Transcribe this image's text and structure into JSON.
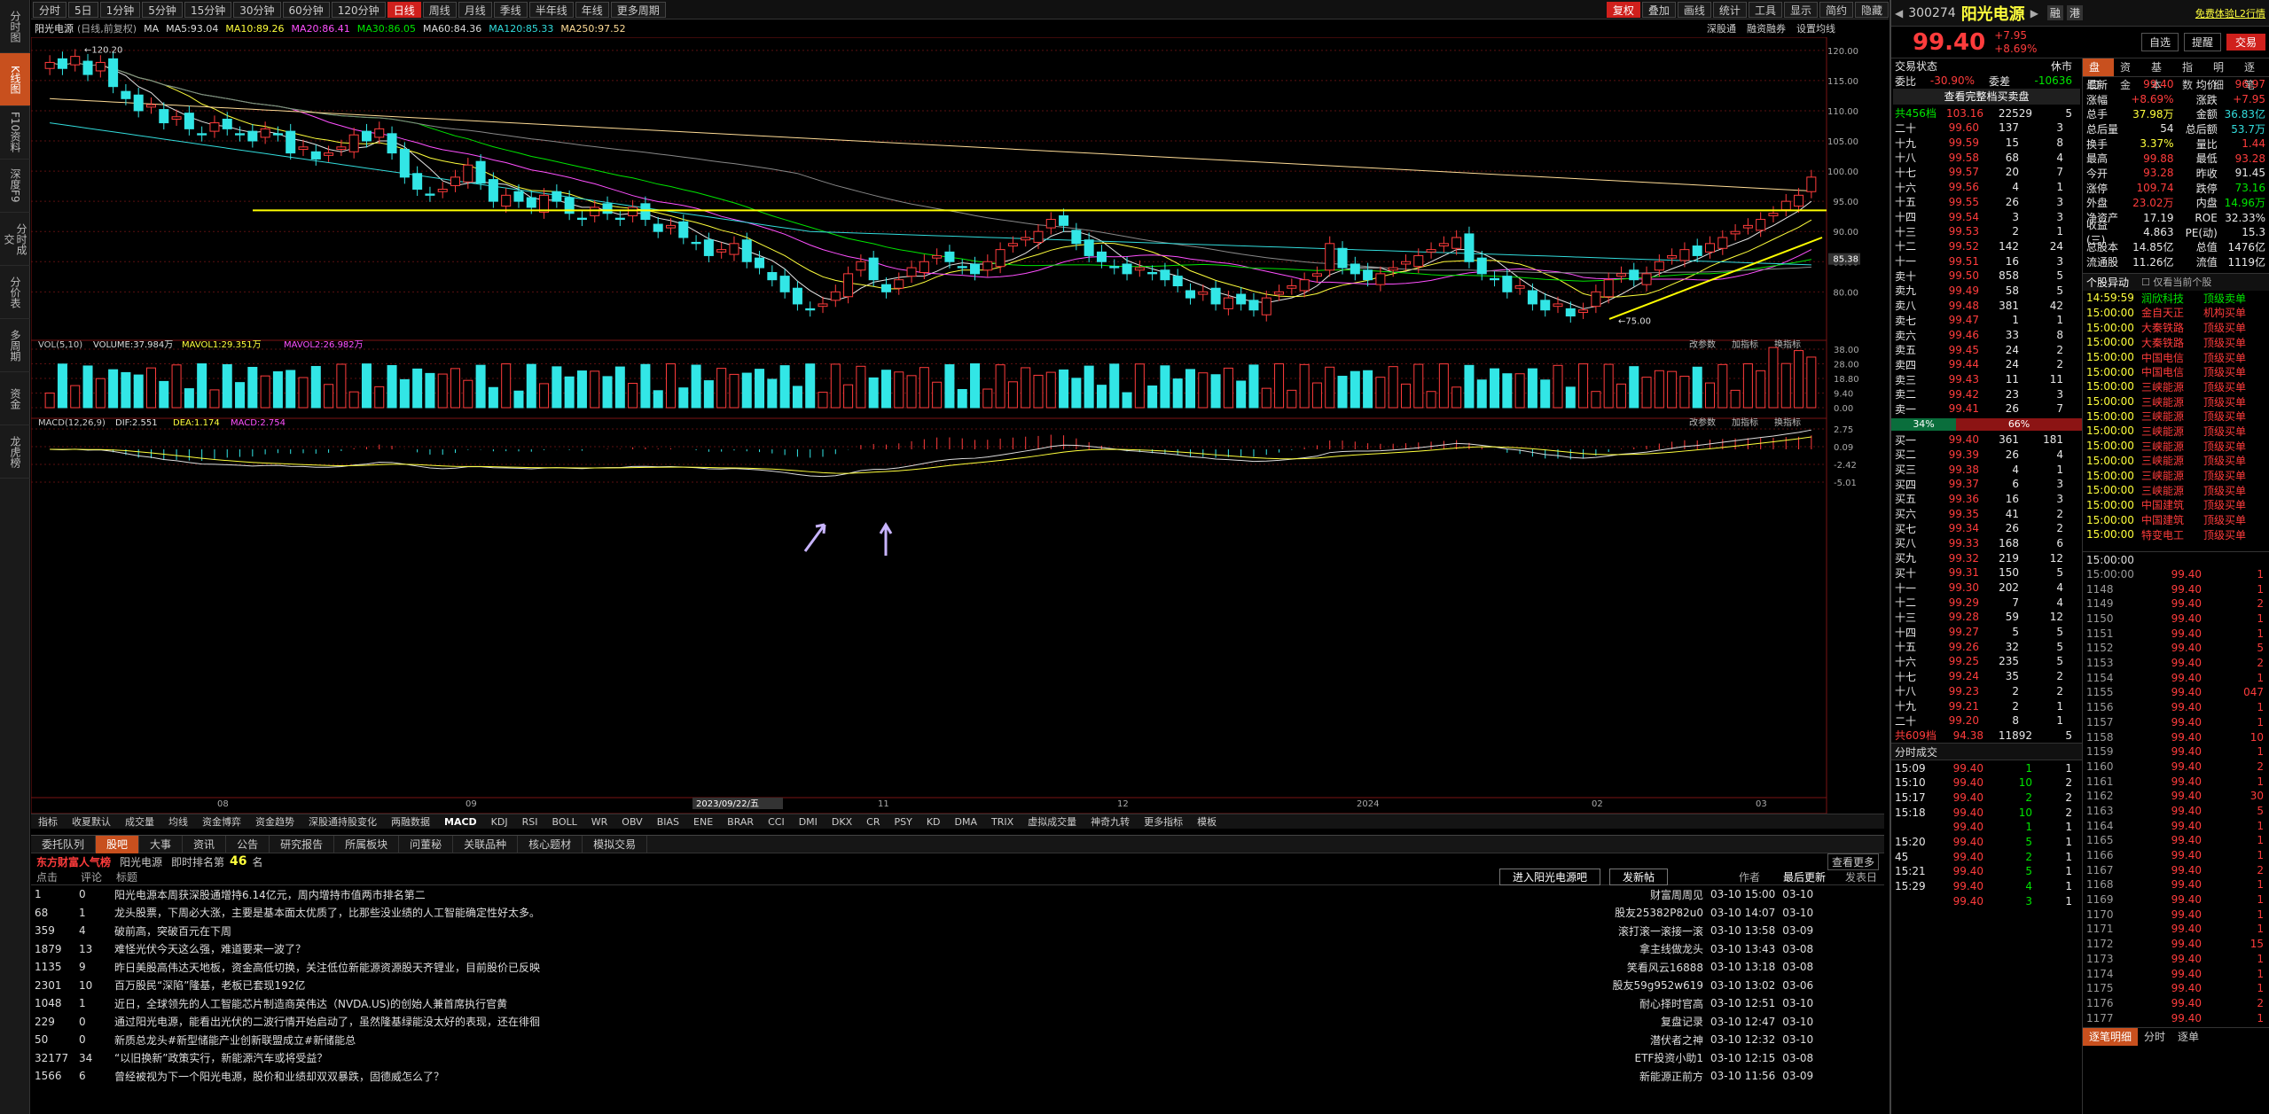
{
  "sidebar": [
    "分时图",
    "K线图",
    "F10资料",
    "深度F9",
    "分时成交",
    "分价表",
    "多周期",
    "资金",
    "龙虎榜"
  ],
  "toolbar": {
    "periods": [
      "分时",
      "5日",
      "1分钟",
      "5分钟",
      "15分钟",
      "30分钟",
      "60分钟",
      "120分钟",
      "日线",
      "周线",
      "月线",
      "季线",
      "半年线",
      "年线",
      "更多周期"
    ],
    "active": "日线",
    "right": [
      "复权",
      "叠加",
      "画线",
      "统计",
      "工具",
      "显示",
      "简约",
      "隐藏"
    ]
  },
  "info": {
    "stock": "阳光电源",
    "mode": "(日线,前复权)",
    "ma": [
      {
        "label": "MA",
        "value": ""
      },
      {
        "label": "MA5:",
        "value": "93.04"
      },
      {
        "label": "MA10:",
        "value": "89.26"
      },
      {
        "label": "MA20:",
        "value": "86.41"
      },
      {
        "label": "MA30:",
        "value": "86.05"
      },
      {
        "label": "MA60:",
        "value": "84.36"
      },
      {
        "label": "MA120:",
        "value": "85.33"
      },
      {
        "label": "MA250:",
        "value": "97.52"
      }
    ],
    "links": [
      "深股通",
      "融资融券",
      "设置均线"
    ]
  },
  "price_axis": [
    "120.00",
    "115.00",
    "110.00",
    "105.00",
    "100.00",
    "95.00",
    "90.00",
    "85.00",
    "80.00"
  ],
  "price_marker": "85.38",
  "high_label": "120.20",
  "low_label": "75.00",
  "vol": {
    "title": "VOL(5,10)",
    "volume": "VOLUME:37.984万",
    "mavol1": "MAVOL1:29.351万",
    "mavol2": "MAVOL2:26.982万",
    "axis": [
      "38.00",
      "28.00",
      "18.80",
      "9.40",
      "0.00"
    ],
    "links": [
      "改参数",
      "加指标",
      "换指标"
    ]
  },
  "macd": {
    "title": "MACD(12,26,9)",
    "dif": "DIF:2.551",
    "dea": "DEA:1.174",
    "macd": "MACD:2.754",
    "axis": [
      "2.75",
      "0.09",
      "-2.42",
      "-5.01"
    ],
    "links": [
      "改参数",
      "加指标",
      "换指标"
    ]
  },
  "xaxis": [
    "08",
    "09",
    "2023/09/22/五",
    "11",
    "12",
    "2024",
    "02",
    "03"
  ],
  "bottom_tabs": [
    "指标",
    "收夏默认",
    "成交量",
    "均线",
    "资金博弈",
    "资金趋势",
    "深股通持股变化",
    "两融数据",
    "MACD",
    "KDJ",
    "RSI",
    "BOLL",
    "WR",
    "OBV",
    "BIAS",
    "ENE",
    "BRAR",
    "CCI",
    "DMI",
    "DKX",
    "CR",
    "PSY",
    "KD",
    "DMA",
    "TRIX",
    "虚拟成交量",
    "神奇九转",
    "更多指标",
    "模板"
  ],
  "news_tabs": [
    "委托队列",
    "股吧",
    "大事",
    "资讯",
    "公告",
    "研究报告",
    "所属板块",
    "问董秘",
    "关联品种",
    "核心题材",
    "模拟交易"
  ],
  "news_header": {
    "brand": "东方财富人气榜",
    "stock": "阳光电源",
    "rank_label": "即时排名第",
    "rank": "46",
    "rank_unit": "名",
    "more": "查看更多",
    "col1": "点击",
    "col2": "评论",
    "col3": "标题",
    "btn1": "进入阳光电源吧",
    "btn2": "发新帖",
    "col4": "作者",
    "col5": "最后更新",
    "col6": "发表日"
  },
  "news": [
    {
      "clicks": "1",
      "comments": "0",
      "title": "阳光电源本周获深股通增持6.14亿元，周内增持市值两市排名第二",
      "author": "财富周周见",
      "upd": "03-10 15:00",
      "date": "03-10"
    },
    {
      "clicks": "68",
      "comments": "1",
      "title": "龙头股票，下周必大涨，主要是基本面太优质了，比那些没业绩的人工智能确定性好太多。",
      "author": "股友25382P82u0",
      "upd": "03-10 14:07",
      "date": "03-10"
    },
    {
      "clicks": "359",
      "comments": "4",
      "title": "破前高，突破百元在下周",
      "author": "滚打滚一滚接一滚",
      "upd": "03-10 13:58",
      "date": "03-09"
    },
    {
      "clicks": "1879",
      "comments": "13",
      "title": "难怪光伏今天这么强，难道要来一波了？",
      "author": "拿主线做龙头",
      "upd": "03-10 13:43",
      "date": "03-08"
    },
    {
      "clicks": "1135",
      "comments": "9",
      "title": "昨日美股高伟达天地板，资金高低切换，关注低位新能源资源股天齐锂业，目前股价已反映",
      "author": "笑看风云16888",
      "upd": "03-10 13:18",
      "date": "03-08"
    },
    {
      "clicks": "2301",
      "comments": "10",
      "title": "百万股民“深陷”隆基，老板已套现192亿",
      "author": "股友59g952w619",
      "upd": "03-10 13:02",
      "date": "03-06"
    },
    {
      "clicks": "1048",
      "comments": "1",
      "title": "近日，全球领先的人工智能芯片制造商英伟达（NVDA.US)的创始人兼首席执行官黄",
      "author": "耐心择时官高",
      "upd": "03-10 12:51",
      "date": "03-10"
    },
    {
      "clicks": "229",
      "comments": "0",
      "title": "通过阳光电源，能看出光伏的二波行情开始启动了，虽然隆基绿能没太好的表现，还在徘徊",
      "author": "复盘记录",
      "upd": "03-10 12:47",
      "date": "03-10"
    },
    {
      "clicks": "50",
      "comments": "0",
      "title": "新质总龙头#新型储能产业创新联盟成立#新储能总",
      "author": "潜伏者之神",
      "upd": "03-10 12:32",
      "date": "03-10"
    },
    {
      "clicks": "32177",
      "comments": "34",
      "title": "“以旧换新”政策实行，新能源汽车或将受益？",
      "author": "ETF投资小助1",
      "upd": "03-10 12:15",
      "date": "03-08"
    },
    {
      "clicks": "1566",
      "comments": "6",
      "title": "曾经被视为下一个阳光电源，股价和业绩却双双暴跌，固德威怎么了？",
      "author": "新能源正前方",
      "upd": "03-10 11:56",
      "date": "03-09"
    }
  ],
  "right": {
    "code": "300274",
    "name": "阳光电源",
    "price": "99.40",
    "chg": "+7.95",
    "pct": "+8.69%",
    "tag_rz": "融",
    "tag_gt": "港",
    "free": "免费体验L2行情",
    "buttons": [
      "自选",
      "提醒",
      "交易"
    ],
    "status_label": "交易状态",
    "status": "休市",
    "weibi_label": "委比",
    "weibi": "-30.90%",
    "weicha_label": "委差",
    "weicha": "-10636",
    "full_book": "查看完整档买卖盘",
    "sell_sum": {
      "label": "共456档",
      "price": "103.16",
      "vol": "22529",
      "n": "5"
    },
    "sells": [
      {
        "l": "二十",
        "p": "99.60",
        "v": "137",
        "n": "3"
      },
      {
        "l": "十九",
        "p": "99.59",
        "v": "15",
        "n": "8"
      },
      {
        "l": "十八",
        "p": "99.58",
        "v": "68",
        "n": "4"
      },
      {
        "l": "十七",
        "p": "99.57",
        "v": "20",
        "n": "7"
      },
      {
        "l": "十六",
        "p": "99.56",
        "v": "4",
        "n": "1"
      },
      {
        "l": "十五",
        "p": "99.55",
        "v": "26",
        "n": "3"
      },
      {
        "l": "十四",
        "p": "99.54",
        "v": "3",
        "n": "3"
      },
      {
        "l": "十三",
        "p": "99.53",
        "v": "2",
        "n": "1"
      },
      {
        "l": "十二",
        "p": "99.52",
        "v": "142",
        "n": "24"
      },
      {
        "l": "十一",
        "p": "99.51",
        "v": "16",
        "n": "3"
      },
      {
        "l": "卖十",
        "p": "99.50",
        "v": "858",
        "n": "5"
      },
      {
        "l": "卖九",
        "p": "99.49",
        "v": "58",
        "n": "5"
      },
      {
        "l": "卖八",
        "p": "99.48",
        "v": "381",
        "n": "42"
      },
      {
        "l": "卖七",
        "p": "99.47",
        "v": "1",
        "n": "1"
      },
      {
        "l": "卖六",
        "p": "99.46",
        "v": "33",
        "n": "8"
      },
      {
        "l": "卖五",
        "p": "99.45",
        "v": "24",
        "n": "2"
      },
      {
        "l": "卖四",
        "p": "99.44",
        "v": "24",
        "n": "2"
      },
      {
        "l": "卖三",
        "p": "99.43",
        "v": "11",
        "n": "11"
      },
      {
        "l": "卖二",
        "p": "99.42",
        "v": "23",
        "n": "3"
      },
      {
        "l": "卖一",
        "p": "99.41",
        "v": "26",
        "n": "7"
      }
    ],
    "ratio": {
      "sell": "34%",
      "buy": "66%"
    },
    "buys": [
      {
        "l": "买一",
        "p": "99.40",
        "v": "361",
        "n": "181"
      },
      {
        "l": "买二",
        "p": "99.39",
        "v": "26",
        "n": "4"
      },
      {
        "l": "买三",
        "p": "99.38",
        "v": "4",
        "n": "1"
      },
      {
        "l": "买四",
        "p": "99.37",
        "v": "6",
        "n": "3"
      },
      {
        "l": "买五",
        "p": "99.36",
        "v": "16",
        "n": "3"
      },
      {
        "l": "买六",
        "p": "99.35",
        "v": "41",
        "n": "2"
      },
      {
        "l": "买七",
        "p": "99.34",
        "v": "26",
        "n": "2"
      },
      {
        "l": "买八",
        "p": "99.33",
        "v": "168",
        "n": "6"
      },
      {
        "l": "买九",
        "p": "99.32",
        "v": "219",
        "n": "12"
      },
      {
        "l": "买十",
        "p": "99.31",
        "v": "150",
        "n": "5"
      },
      {
        "l": "十一",
        "p": "99.30",
        "v": "202",
        "n": "4"
      },
      {
        "l": "十二",
        "p": "99.29",
        "v": "7",
        "n": "4"
      },
      {
        "l": "十三",
        "p": "99.28",
        "v": "59",
        "n": "12"
      },
      {
        "l": "十四",
        "p": "99.27",
        "v": "5",
        "n": "5"
      },
      {
        "l": "十五",
        "p": "99.26",
        "v": "32",
        "n": "5"
      },
      {
        "l": "十六",
        "p": "99.25",
        "v": "235",
        "n": "5"
      },
      {
        "l": "十七",
        "p": "99.24",
        "v": "35",
        "n": "2"
      },
      {
        "l": "十八",
        "p": "99.23",
        "v": "2",
        "n": "2"
      },
      {
        "l": "十九",
        "p": "99.21",
        "v": "2",
        "n": "1"
      },
      {
        "l": "二十",
        "p": "99.20",
        "v": "8",
        "n": "1"
      }
    ],
    "buy_sum": {
      "label": "共609档",
      "price": "94.38",
      "vol": "11892",
      "n": "5"
    },
    "qtabs": [
      "盘口",
      "资金",
      "基本",
      "指数",
      "明细",
      "逐笔"
    ],
    "stats": [
      [
        "最新",
        "99.40",
        "red",
        "均价",
        "96.97",
        "red"
      ],
      [
        "涨幅",
        "+8.69%",
        "red",
        "涨跌",
        "+7.95",
        "red"
      ],
      [
        "总手",
        "37.98万",
        "yel",
        "金额",
        "36.83亿",
        "cyan"
      ],
      [
        "总后量",
        "54",
        "wht",
        "总后额",
        "53.7万",
        "cyan"
      ],
      [
        "换手",
        "3.37%",
        "yel",
        "量比",
        "1.44",
        "red"
      ],
      [
        "最高",
        "99.88",
        "red",
        "最低",
        "93.28",
        "red"
      ],
      [
        "今开",
        "93.28",
        "red",
        "昨收",
        "91.45",
        "wht"
      ],
      [
        "涨停",
        "109.74",
        "red",
        "跌停",
        "73.16",
        "grn"
      ],
      [
        "外盘",
        "23.02万",
        "red",
        "内盘",
        "14.96万",
        "grn"
      ],
      [
        "净资产",
        "17.19",
        "wht",
        "ROE",
        "32.33%",
        "wht"
      ],
      [
        "收益(三)",
        "4.863",
        "wht",
        "PE(动)",
        "15.3",
        "wht"
      ],
      [
        "总股本",
        "14.85亿",
        "wht",
        "总值",
        "1476亿",
        "wht"
      ],
      [
        "流通股",
        "11.26亿",
        "wht",
        "流值",
        "1119亿",
        "wht"
      ]
    ],
    "mover_title": "个股异动",
    "mover_opt": "仅看当前个股",
    "movers": [
      [
        "14:59:59",
        "润欣科技",
        "顶级卖单"
      ],
      [
        "15:00:00",
        "金自天正",
        "机构买单"
      ],
      [
        "15:00:00",
        "大秦铁路",
        "顶级买单"
      ],
      [
        "15:00:00",
        "大秦铁路",
        "顶级买单"
      ],
      [
        "15:00:00",
        "中国电信",
        "顶级买单"
      ],
      [
        "15:00:00",
        "中国电信",
        "顶级买单"
      ],
      [
        "15:00:00",
        "三峡能源",
        "顶级买单"
      ],
      [
        "15:00:00",
        "三峡能源",
        "顶级买单"
      ],
      [
        "15:00:00",
        "三峡能源",
        "顶级买单"
      ],
      [
        "15:00:00",
        "三峡能源",
        "顶级买单"
      ],
      [
        "15:00:00",
        "三峡能源",
        "顶级买单"
      ],
      [
        "15:00:00",
        "三峡能源",
        "顶级买单"
      ],
      [
        "15:00:00",
        "三峡能源",
        "顶级买单"
      ],
      [
        "15:00:00",
        "三峡能源",
        "顶级买单"
      ],
      [
        "15:00:00",
        "中国建筑",
        "顶级买单"
      ],
      [
        "15:00:00",
        "中国建筑",
        "顶级买单"
      ],
      [
        "15:00:00",
        "特变电工",
        "顶级买单"
      ]
    ],
    "tick_title": "分时成交",
    "ticks": [
      [
        "15:09",
        "99.40",
        "1",
        "1"
      ],
      [
        "15:10",
        "99.40",
        "10",
        "2"
      ],
      [
        "15:17",
        "99.40",
        "2",
        "2"
      ],
      [
        "15:18",
        "99.40",
        "10",
        "2"
      ],
      [
        "",
        "99.40",
        "1",
        "1"
      ],
      [
        "15:20",
        "99.40",
        "5",
        "1"
      ],
      [
        "45",
        "99.40",
        "2",
        "1"
      ],
      [
        "15:21",
        "99.40",
        "5",
        "1"
      ],
      [
        "15:29",
        "99.40",
        "4",
        "1"
      ],
      [
        "",
        "99.40",
        "3",
        "1"
      ]
    ],
    "detail_title": "15:00:00",
    "details": [
      [
        "15:00:00",
        "99.40",
        "1"
      ],
      [
        "1148",
        "99.40",
        "1"
      ],
      [
        "1149",
        "99.40",
        "2"
      ],
      [
        "1150",
        "99.40",
        "1"
      ],
      [
        "1151",
        "99.40",
        "1"
      ],
      [
        "1152",
        "99.40",
        "5"
      ],
      [
        "1153",
        "99.40",
        "2"
      ],
      [
        "1154",
        "99.40",
        "1"
      ],
      [
        "1155",
        "99.40",
        "047"
      ],
      [
        "1156",
        "99.40",
        "1"
      ],
      [
        "1157",
        "99.40",
        "1"
      ],
      [
        "1158",
        "99.40",
        "10"
      ],
      [
        "1159",
        "99.40",
        "1"
      ],
      [
        "1160",
        "99.40",
        "2"
      ],
      [
        "1161",
        "99.40",
        "1"
      ],
      [
        "1162",
        "99.40",
        "30"
      ],
      [
        "1163",
        "99.40",
        "5"
      ],
      [
        "1164",
        "99.40",
        "1"
      ],
      [
        "1165",
        "99.40",
        "1"
      ],
      [
        "1166",
        "99.40",
        "1"
      ],
      [
        "1167",
        "99.40",
        "2"
      ],
      [
        "1168",
        "99.40",
        "1"
      ],
      [
        "1169",
        "99.40",
        "1"
      ],
      [
        "1170",
        "99.40",
        "1"
      ],
      [
        "1171",
        "99.40",
        "1"
      ],
      [
        "1172",
        "99.40",
        "15"
      ],
      [
        "1173",
        "99.40",
        "1"
      ],
      [
        "1174",
        "99.40",
        "1"
      ],
      [
        "1175",
        "99.40",
        "1"
      ],
      [
        "1176",
        "99.40",
        "2"
      ],
      [
        "1177",
        "99.40",
        "1"
      ]
    ],
    "bottom_tabs": [
      "逐笔明细",
      "分时",
      "逐单"
    ]
  },
  "chart_data": {
    "type": "candlestick",
    "ticker": "300274",
    "name": "阳光电源",
    "period": "日线",
    "ylim": [
      73,
      121
    ],
    "hline": 93.5,
    "high": 120.2,
    "low": 75.0,
    "closes": [
      118,
      117,
      119,
      116,
      118,
      114,
      112,
      110,
      111,
      108,
      109,
      107,
      106,
      108,
      107,
      106,
      105,
      107,
      106,
      103,
      104,
      102,
      103,
      104,
      106,
      105,
      107,
      103,
      99,
      97,
      96,
      97,
      99,
      101,
      98,
      95,
      96,
      95,
      94,
      96,
      95,
      93,
      92,
      94,
      93,
      92,
      94,
      92,
      90,
      91,
      89,
      88,
      86,
      87,
      88,
      85,
      84,
      82,
      80,
      78,
      77,
      78,
      80,
      83,
      85,
      82,
      80,
      82,
      84,
      85,
      86,
      85,
      84,
      83,
      85,
      87,
      88,
      89,
      90,
      92,
      91,
      88,
      86,
      85,
      84,
      83,
      84,
      83,
      82,
      81,
      79,
      80,
      78,
      79,
      78,
      77,
      79,
      80,
      81,
      82,
      83,
      88,
      84,
      83,
      82,
      83,
      84,
      85,
      86,
      87,
      88,
      89,
      85,
      83,
      82,
      80,
      81,
      78,
      77,
      78,
      76,
      77,
      80,
      82,
      83,
      82,
      83,
      85,
      86,
      87,
      86,
      88,
      89,
      90,
      91,
      92,
      93,
      95,
      96,
      99
    ]
  }
}
